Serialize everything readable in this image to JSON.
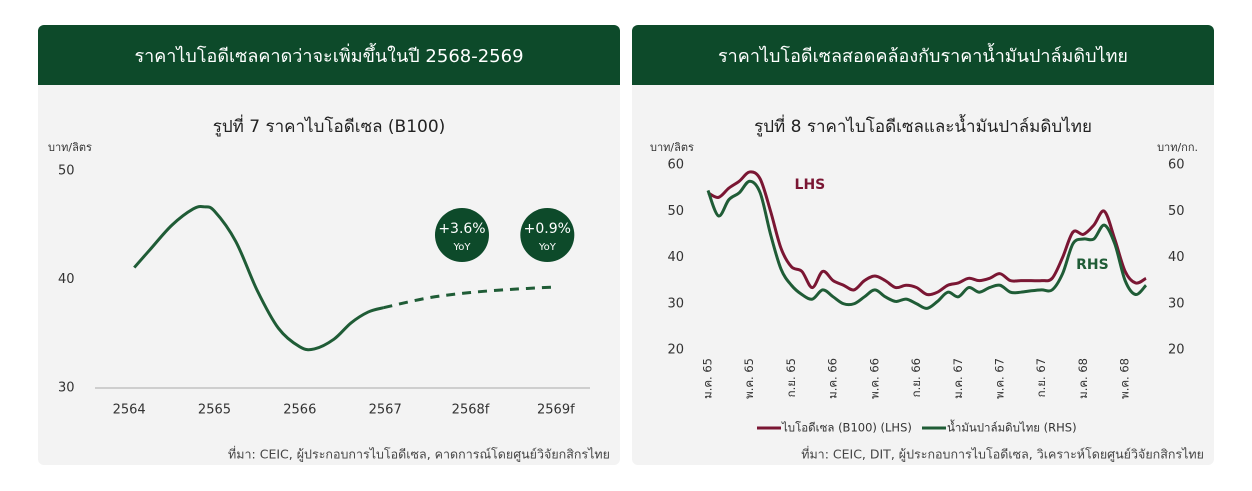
{
  "chart_data": [
    {
      "type": "line",
      "header": "ราคาไบโอดีเซลคาดว่าจะเพิ่มขึ้นในปี 2568-2569",
      "title": "รูปที่ 7 ราคาไบโอดีเซล (B100)",
      "ylabel": "บาท/ลิตร",
      "source": "ที่มา: CEIC, ผู้ประกอบการไบโอดีเซล, คาดการณ์โดยศูนย์วิจัยกสิกรไทย",
      "xlim": [
        2563.6,
        2569.4
      ],
      "xticks": [
        2564,
        2565,
        2566,
        2567,
        {
          "value": 2568,
          "label": "2568f"
        },
        {
          "value": 2569,
          "label": "2569f"
        }
      ],
      "ylim": [
        30,
        50
      ],
      "yticks": [
        30,
        40,
        50
      ],
      "series": [
        {
          "color": "#1f5c36",
          "line_style": "solid",
          "x": [
            2564.06,
            2564.25,
            2564.5,
            2564.75,
            2564.88,
            2565.0,
            2565.25,
            2565.5,
            2565.75,
            2566.0,
            2566.17,
            2566.4,
            2566.6,
            2566.8,
            2566.98
          ],
          "values": [
            41.1,
            42.8,
            45.0,
            46.5,
            46.7,
            46.3,
            43.5,
            39.0,
            35.5,
            33.8,
            33.6,
            34.5,
            36.0,
            37.0,
            37.4
          ]
        },
        {
          "color": "#1f5c36",
          "line_style": "dashed",
          "x": [
            2566.98,
            2567.5,
            2568.0,
            2568.5,
            2568.97
          ],
          "values": [
            37.4,
            38.3,
            38.8,
            39.1,
            39.3
          ]
        }
      ],
      "annotations": [
        {
          "text": "+3.6%",
          "subtext": "YoY",
          "x": 2567.9,
          "y": 44.1
        },
        {
          "text": "+0.9%",
          "subtext": "YoY",
          "x": 2568.9,
          "y": 44.1
        }
      ]
    },
    {
      "type": "line",
      "header": "ราคาไบโอดีเซลสอดคล้องกับราคาน้ำมันปาล์มดิบไทย",
      "title": "รูปที่ 8 ราคาไบโอดีเซลและน้ำมันปาล์มดิบไทย",
      "ylabel": "บาท/ลิตร",
      "y2label": "บาท/กก.",
      "source": "ที่มา: CEIC, DIT, ผู้ประกอบการไบโอดีเซล, วิเคราะห์โดยศูนย์วิจัยกสิกรไทย",
      "categories": [
        "ม.ค. 65",
        null,
        null,
        null,
        "พ.ค. 65",
        null,
        null,
        null,
        "ก.ย. 65",
        null,
        null,
        null,
        "ม.ค. 66",
        null,
        null,
        null,
        "พ.ค. 66",
        null,
        null,
        null,
        "ก.ย. 66",
        null,
        null,
        null,
        "ม.ค. 67",
        null,
        null,
        null,
        "พ.ค. 67",
        null,
        null,
        null,
        "ก.ย. 67",
        null,
        null,
        null,
        "ม.ค. 68",
        null,
        null,
        null,
        "พ.ค. 68",
        null,
        null
      ],
      "ylim": [
        20,
        60
      ],
      "yticks": [
        20,
        30,
        40,
        50,
        60
      ],
      "y2lim": [
        20,
        60
      ],
      "y2ticks": [
        20,
        30,
        40,
        50,
        60
      ],
      "series": [
        {
          "name": "ไบโอดีเซล (B100) (LHS)",
          "color": "#7a1633",
          "values": [
            54,
            53,
            55,
            56.5,
            58.5,
            57,
            50,
            42,
            38,
            37,
            33.5,
            37,
            35,
            34,
            33,
            35,
            36,
            35,
            33.5,
            34,
            33.5,
            32,
            32.5,
            34,
            34.5,
            35.5,
            35,
            35.5,
            36.5,
            35,
            35,
            35,
            35,
            35.5,
            40,
            45.5,
            45,
            47,
            50,
            44,
            37,
            34.5,
            35.5
          ]
        },
        {
          "name": "น้ำมันปาล์มดิบไทย (RHS)",
          "color": "#1f5c36",
          "axis": "y2",
          "values": [
            54.5,
            49,
            52.5,
            54,
            56.5,
            54,
            45,
            37.5,
            34,
            32,
            31,
            33,
            31.5,
            30,
            30,
            31.5,
            33,
            31.5,
            30.5,
            31,
            30,
            29,
            30.5,
            32.5,
            31.5,
            33.5,
            32.5,
            33.5,
            34,
            32.5,
            32.5,
            32.8,
            33,
            33,
            36.5,
            43,
            44,
            44,
            47,
            43,
            35,
            32,
            34
          ]
        }
      ],
      "annotations": [
        {
          "text": "LHS",
          "x": 8.3,
          "y": 55.7,
          "color": "#7a1633"
        },
        {
          "text": "RHS",
          "x": 35.3,
          "y": 38.4,
          "color": "#1f5c36"
        }
      ]
    }
  ]
}
